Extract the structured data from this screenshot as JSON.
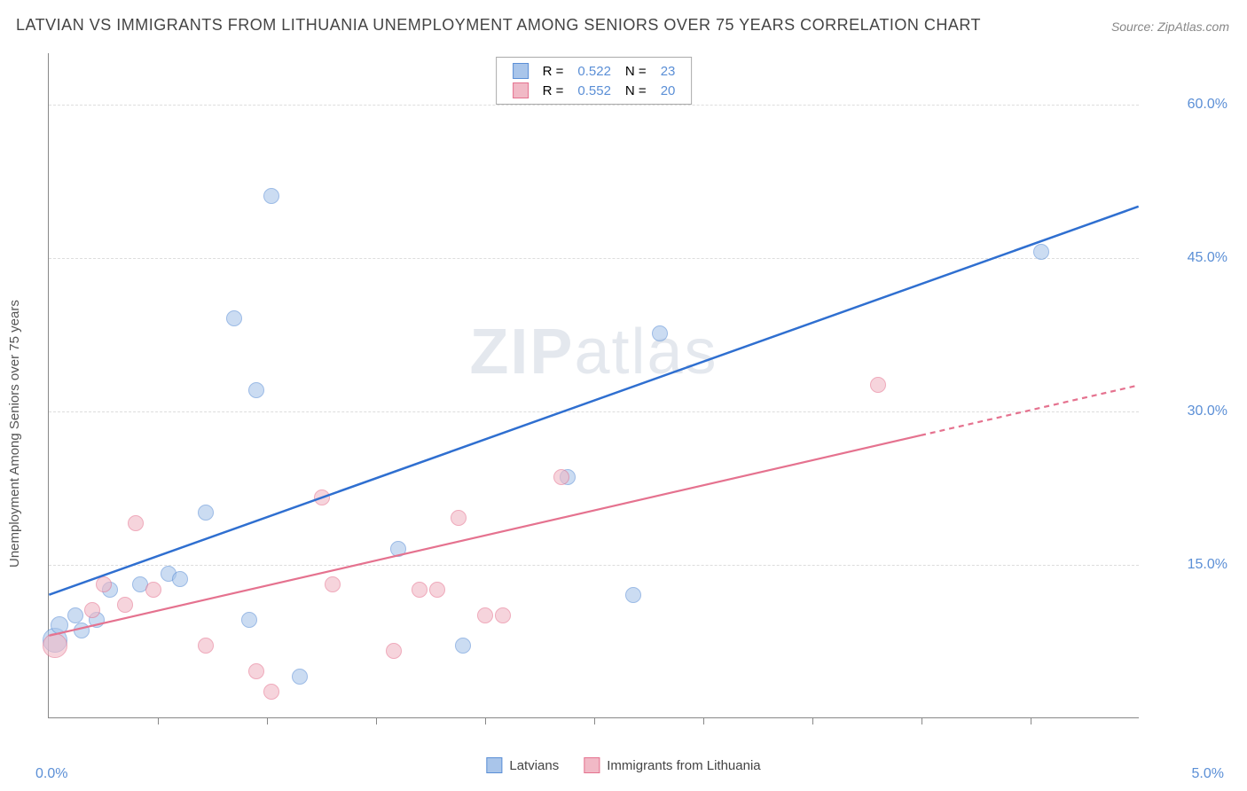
{
  "title": "LATVIAN VS IMMIGRANTS FROM LITHUANIA UNEMPLOYMENT AMONG SENIORS OVER 75 YEARS CORRELATION CHART",
  "source": "Source: ZipAtlas.com",
  "y_axis_label": "Unemployment Among Seniors over 75 years",
  "watermark_bold": "ZIP",
  "watermark_rest": "atlas",
  "chart": {
    "type": "scatter",
    "x_min": 0.0,
    "x_max": 5.0,
    "y_min": 0.0,
    "y_max": 65.0,
    "y_ticks": [
      15.0,
      30.0,
      45.0,
      60.0
    ],
    "y_tick_labels": [
      "15.0%",
      "30.0%",
      "45.0%",
      "60.0%"
    ],
    "x_ticks": [
      0.5,
      1.0,
      1.5,
      2.0,
      2.5,
      3.0,
      3.5,
      4.0,
      4.5
    ],
    "x_origin_label": "0.0%",
    "x_max_label": "5.0%",
    "background_color": "#ffffff",
    "grid_color": "#dddddd",
    "series": [
      {
        "name": "Latvians",
        "fill_color": "#a9c5ea",
        "stroke_color": "#5b8fd6",
        "fill_opacity": 0.6,
        "marker_radius": 9,
        "R": "0.522",
        "N": "23",
        "trend": {
          "x1": 0.0,
          "y1": 12.0,
          "x2": 5.0,
          "y2": 50.0,
          "color": "#2f6fd0",
          "width": 2.5,
          "solid_until_x": 5.0
        },
        "points": [
          {
            "x": 0.03,
            "y": 7.5,
            "r": 14
          },
          {
            "x": 0.05,
            "y": 9.0,
            "r": 10
          },
          {
            "x": 0.12,
            "y": 10.0,
            "r": 9
          },
          {
            "x": 0.15,
            "y": 8.5,
            "r": 9
          },
          {
            "x": 0.22,
            "y": 9.5,
            "r": 9
          },
          {
            "x": 0.28,
            "y": 12.5,
            "r": 9
          },
          {
            "x": 0.42,
            "y": 13.0,
            "r": 9
          },
          {
            "x": 0.55,
            "y": 14.0,
            "r": 9
          },
          {
            "x": 0.6,
            "y": 13.5,
            "r": 9
          },
          {
            "x": 0.72,
            "y": 20.0,
            "r": 9
          },
          {
            "x": 0.85,
            "y": 39.0,
            "r": 9
          },
          {
            "x": 0.92,
            "y": 9.5,
            "r": 9
          },
          {
            "x": 0.95,
            "y": 32.0,
            "r": 9
          },
          {
            "x": 1.02,
            "y": 51.0,
            "r": 9
          },
          {
            "x": 1.15,
            "y": 4.0,
            "r": 9
          },
          {
            "x": 1.6,
            "y": 16.5,
            "r": 9
          },
          {
            "x": 1.9,
            "y": 7.0,
            "r": 9
          },
          {
            "x": 2.38,
            "y": 23.5,
            "r": 9
          },
          {
            "x": 2.68,
            "y": 12.0,
            "r": 9
          },
          {
            "x": 2.8,
            "y": 37.5,
            "r": 9
          },
          {
            "x": 4.55,
            "y": 45.5,
            "r": 9
          }
        ]
      },
      {
        "name": "Immigrants from Lithuania",
        "fill_color": "#f1b9c6",
        "stroke_color": "#e5728f",
        "fill_opacity": 0.6,
        "marker_radius": 9,
        "R": "0.552",
        "N": "20",
        "trend": {
          "x1": 0.0,
          "y1": 8.0,
          "x2": 5.0,
          "y2": 32.5,
          "color": "#e5728f",
          "width": 2.2,
          "solid_until_x": 4.0
        },
        "points": [
          {
            "x": 0.03,
            "y": 7.0,
            "r": 14
          },
          {
            "x": 0.2,
            "y": 10.5,
            "r": 9
          },
          {
            "x": 0.25,
            "y": 13.0,
            "r": 9
          },
          {
            "x": 0.35,
            "y": 11.0,
            "r": 9
          },
          {
            "x": 0.4,
            "y": 19.0,
            "r": 9
          },
          {
            "x": 0.48,
            "y": 12.5,
            "r": 9
          },
          {
            "x": 0.72,
            "y": 7.0,
            "r": 9
          },
          {
            "x": 0.95,
            "y": 4.5,
            "r": 9
          },
          {
            "x": 1.02,
            "y": 2.5,
            "r": 9
          },
          {
            "x": 1.25,
            "y": 21.5,
            "r": 9
          },
          {
            "x": 1.3,
            "y": 13.0,
            "r": 9
          },
          {
            "x": 1.58,
            "y": 6.5,
            "r": 9
          },
          {
            "x": 1.7,
            "y": 12.5,
            "r": 9
          },
          {
            "x": 1.78,
            "y": 12.5,
            "r": 9
          },
          {
            "x": 1.88,
            "y": 19.5,
            "r": 9
          },
          {
            "x": 2.0,
            "y": 10.0,
            "r": 9
          },
          {
            "x": 2.08,
            "y": 10.0,
            "r": 9
          },
          {
            "x": 2.35,
            "y": 23.5,
            "r": 9
          },
          {
            "x": 3.8,
            "y": 32.5,
            "r": 9
          }
        ]
      }
    ],
    "legend_top": {
      "rows": [
        {
          "swatch_fill": "#a9c5ea",
          "swatch_stroke": "#5b8fd6",
          "R_label": "R =",
          "R_val": "0.522",
          "N_label": "N =",
          "N_val": "23"
        },
        {
          "swatch_fill": "#f1b9c6",
          "swatch_stroke": "#e5728f",
          "R_label": "R =",
          "R_val": "0.552",
          "N_label": "N =",
          "N_val": "20"
        }
      ]
    },
    "legend_bottom": [
      {
        "swatch_fill": "#a9c5ea",
        "swatch_stroke": "#5b8fd6",
        "label": "Latvians"
      },
      {
        "swatch_fill": "#f1b9c6",
        "swatch_stroke": "#e5728f",
        "label": "Immigrants from Lithuania"
      }
    ]
  }
}
